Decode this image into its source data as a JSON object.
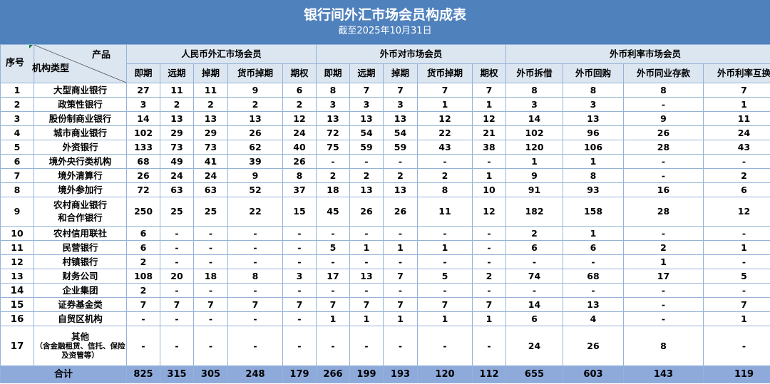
{
  "header": {
    "title": "银行间外汇市场会员构成表",
    "subtitle": "截至2025年10月31日"
  },
  "corner": {
    "seq_label": "序号",
    "product_label": "产品",
    "type_label": "机构类型"
  },
  "groups": [
    {
      "label": "人民币外汇市场会员",
      "columns": [
        "即期",
        "远期",
        "掉期",
        "货币掉期",
        "期权"
      ]
    },
    {
      "label": "外币对市场会员",
      "columns": [
        "即期",
        "远期",
        "掉期",
        "货币掉期",
        "期权"
      ]
    },
    {
      "label": "外币利率市场会员",
      "columns": [
        "外币拆借",
        "外币回购",
        "外币同业存款",
        "外币利率互换"
      ]
    }
  ],
  "rows": [
    {
      "seq": "1",
      "name": "大型商业银行",
      "values": [
        "27",
        "11",
        "11",
        "9",
        "6",
        "8",
        "7",
        "7",
        "7",
        "7",
        "8",
        "8",
        "8",
        "7"
      ]
    },
    {
      "seq": "2",
      "name": "政策性银行",
      "values": [
        "3",
        "2",
        "2",
        "2",
        "2",
        "3",
        "3",
        "3",
        "1",
        "1",
        "3",
        "3",
        "-",
        "1"
      ]
    },
    {
      "seq": "3",
      "name": "股份制商业银行",
      "values": [
        "14",
        "13",
        "13",
        "13",
        "12",
        "13",
        "13",
        "13",
        "12",
        "12",
        "14",
        "13",
        "9",
        "11"
      ]
    },
    {
      "seq": "4",
      "name": "城市商业银行",
      "values": [
        "102",
        "29",
        "29",
        "26",
        "24",
        "72",
        "54",
        "54",
        "22",
        "21",
        "102",
        "96",
        "26",
        "24"
      ]
    },
    {
      "seq": "5",
      "name": "外资银行",
      "values": [
        "133",
        "73",
        "73",
        "62",
        "40",
        "75",
        "59",
        "59",
        "43",
        "38",
        "120",
        "106",
        "28",
        "43"
      ]
    },
    {
      "seq": "6",
      "name": "境外央行类机构",
      "values": [
        "68",
        "49",
        "41",
        "39",
        "26",
        "-",
        "-",
        "-",
        "-",
        "-",
        "1",
        "1",
        "-",
        "-"
      ]
    },
    {
      "seq": "7",
      "name": "境外清算行",
      "values": [
        "26",
        "24",
        "24",
        "9",
        "8",
        "2",
        "2",
        "2",
        "2",
        "1",
        "9",
        "8",
        "-",
        "2"
      ]
    },
    {
      "seq": "8",
      "name": "境外参加行",
      "values": [
        "72",
        "63",
        "63",
        "52",
        "37",
        "18",
        "13",
        "13",
        "8",
        "10",
        "91",
        "93",
        "16",
        "6"
      ]
    },
    {
      "seq": "9",
      "name": "农村商业银行",
      "name2": "和合作银行",
      "values": [
        "250",
        "25",
        "25",
        "22",
        "15",
        "45",
        "26",
        "26",
        "11",
        "12",
        "182",
        "158",
        "28",
        "12"
      ]
    },
    {
      "seq": "10",
      "name": "农村信用联社",
      "values": [
        "6",
        "-",
        "-",
        "-",
        "-",
        "-",
        "-",
        "-",
        "-",
        "-",
        "2",
        "1",
        "-",
        "-"
      ]
    },
    {
      "seq": "11",
      "name": "民营银行",
      "values": [
        "6",
        "-",
        "-",
        "-",
        "-",
        "5",
        "1",
        "1",
        "1",
        "-",
        "6",
        "6",
        "2",
        "1"
      ]
    },
    {
      "seq": "12",
      "name": "村镇银行",
      "values": [
        "2",
        "-",
        "-",
        "-",
        "-",
        "-",
        "-",
        "-",
        "-",
        "-",
        "-",
        "-",
        "1",
        "-"
      ]
    },
    {
      "seq": "13",
      "name": "财务公司",
      "values": [
        "108",
        "20",
        "18",
        "8",
        "3",
        "17",
        "13",
        "7",
        "5",
        "2",
        "74",
        "68",
        "17",
        "5"
      ]
    },
    {
      "seq": "14",
      "name": "企业集团",
      "values": [
        "2",
        "-",
        "-",
        "-",
        "-",
        "-",
        "-",
        "-",
        "-",
        "-",
        "-",
        "-",
        "-",
        "-"
      ]
    },
    {
      "seq": "15",
      "name": "证券基金类",
      "values": [
        "7",
        "7",
        "7",
        "7",
        "7",
        "7",
        "7",
        "7",
        "7",
        "7",
        "14",
        "13",
        "-",
        "7"
      ]
    },
    {
      "seq": "16",
      "name": "自贸区机构",
      "values": [
        "-",
        "-",
        "-",
        "-",
        "-",
        "1",
        "1",
        "1",
        "1",
        "1",
        "6",
        "4",
        "-",
        "1"
      ]
    },
    {
      "seq": "17",
      "name": "其他",
      "note": "（含金融租赁、信托、保险及资管等）",
      "values": [
        "-",
        "-",
        "-",
        "-",
        "-",
        "-",
        "-",
        "-",
        "-",
        "-",
        "24",
        "26",
        "8",
        "-"
      ]
    }
  ],
  "total": {
    "label": "合计",
    "values": [
      "825",
      "315",
      "305",
      "248",
      "179",
      "266",
      "199",
      "193",
      "120",
      "112",
      "655",
      "603",
      "143",
      "119"
    ]
  },
  "colors": {
    "title_bg": "#4f81bd",
    "header_bg": "#dce6f1",
    "total_bg": "#8eaadb",
    "border": "#95b3d7"
  }
}
